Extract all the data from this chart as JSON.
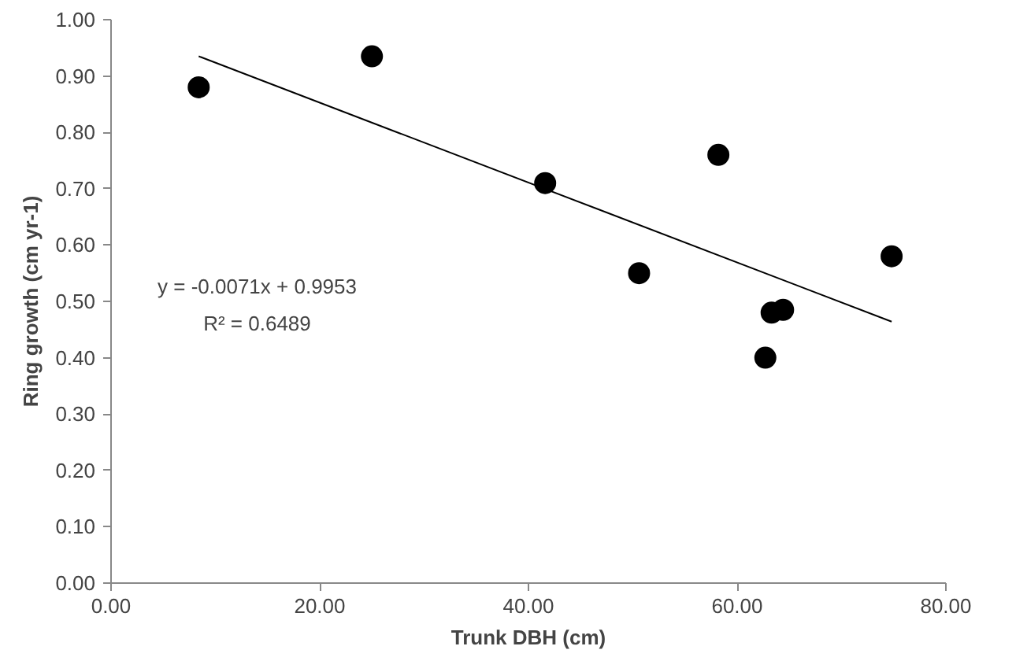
{
  "chart_data": {
    "type": "scatter",
    "xlabel": "Trunk DBH (cm)",
    "ylabel": "Ring growth (cm yr-1)",
    "x": [
      8.4,
      25.0,
      41.6,
      50.6,
      58.2,
      62.7,
      63.3,
      64.4,
      74.8
    ],
    "series": [
      {
        "color": "#000000",
        "marker": "circle",
        "values": [
          0.88,
          0.935,
          0.71,
          0.55,
          0.76,
          0.4,
          0.48,
          0.485,
          0.58
        ]
      },
      {
        "type": "line",
        "color": "#000000",
        "line_style": "solid",
        "marker": "none",
        "x": [
          8.4,
          74.8
        ],
        "values": [
          0.935,
          0.464
        ]
      }
    ],
    "annotations": [
      "y = -0.0071x + 0.9953",
      "R² = 0.6489"
    ],
    "xlim": [
      0,
      80
    ],
    "xticks": [
      {
        "value": 0,
        "label": "0.00"
      },
      {
        "value": 20,
        "label": "20.00"
      },
      {
        "value": 40,
        "label": "40.00"
      },
      {
        "value": 60,
        "label": "60.00"
      },
      {
        "value": 80,
        "label": "80.00"
      }
    ],
    "ylim": [
      0,
      1
    ],
    "yticks": [
      {
        "value": 0,
        "label": "0.00"
      },
      {
        "value": 0.1,
        "label": "0.10"
      },
      {
        "value": 0.2,
        "label": "0.20"
      },
      {
        "value": 0.3,
        "label": "0.30"
      },
      {
        "value": 0.4,
        "label": "0.40"
      },
      {
        "value": 0.5,
        "label": "0.50"
      },
      {
        "value": 0.6,
        "label": "0.60"
      },
      {
        "value": 0.7,
        "label": "0.70"
      },
      {
        "value": 0.8,
        "label": "0.80"
      },
      {
        "value": 0.9,
        "label": "0.90"
      },
      {
        "value": 1.0,
        "label": "1.00"
      }
    ],
    "grid": false
  }
}
